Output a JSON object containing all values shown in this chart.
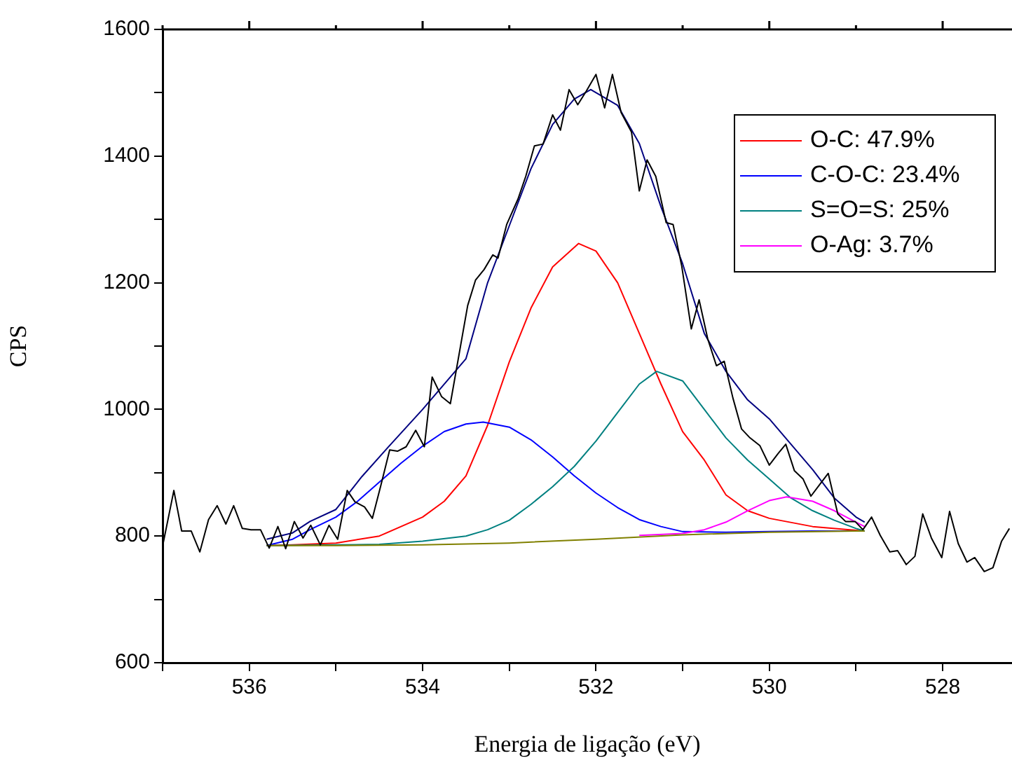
{
  "chart_data": {
    "type": "line",
    "xlabel": "Energia de ligação (eV)",
    "ylabel": "CPS",
    "xlim": [
      537,
      527.2
    ],
    "xticks": [
      {
        "value": 537,
        "label": null
      },
      536,
      {
        "value": 535,
        "label": null
      },
      534,
      {
        "value": 533,
        "label": null
      },
      532,
      {
        "value": 531,
        "label": null
      },
      530,
      {
        "value": 529,
        "label": null
      },
      528
    ],
    "ylim": [
      600,
      1600
    ],
    "yticks": [
      600,
      {
        "value": 700,
        "label": null
      },
      800,
      {
        "value": 900,
        "label": null
      },
      1000,
      {
        "value": 1100,
        "label": null
      },
      1200,
      {
        "value": 1300,
        "label": null
      },
      1400,
      {
        "value": 1500,
        "label": null
      },
      1600
    ],
    "legend": "top right",
    "marker": "none",
    "line_style": "solid",
    "series": [
      {
        "name": "O-C: 47.9%",
        "color": "#ff0000",
        "x": [
          535.8,
          535.5,
          535,
          534.5,
          534,
          533.75,
          533.5,
          533.25,
          533,
          532.75,
          532.5,
          532.2,
          532,
          531.75,
          531.5,
          531.25,
          531,
          530.75,
          530.5,
          530.25,
          530,
          529.5,
          529,
          528.9
        ],
        "values": [
          785,
          786,
          789,
          800,
          830,
          855,
          895,
          975,
          1075,
          1160,
          1225,
          1262,
          1250,
          1200,
          1120,
          1040,
          965,
          920,
          865,
          840,
          828,
          815,
          809,
          808
        ]
      },
      {
        "name": "C-O-C: 23.4%",
        "color": "#0000ff",
        "x": [
          535.8,
          535.5,
          535.3,
          535,
          534.75,
          534.5,
          534.25,
          534,
          533.75,
          533.5,
          533.3,
          533,
          532.75,
          532.5,
          532.25,
          532,
          531.75,
          531.5,
          531.25,
          531,
          530.5,
          530,
          529.5,
          528.9
        ],
        "values": [
          785,
          795,
          810,
          830,
          855,
          885,
          915,
          942,
          965,
          977,
          980,
          972,
          952,
          925,
          895,
          868,
          845,
          826,
          815,
          807,
          806,
          807,
          808,
          808
        ]
      },
      {
        "name": "S=O=S: 25%",
        "color": "#008080",
        "x": [
          535.8,
          535,
          534.5,
          534,
          533.5,
          533.25,
          533,
          532.75,
          532.5,
          532.25,
          532,
          531.75,
          531.5,
          531.3,
          531,
          530.75,
          530.5,
          530.25,
          530,
          529.75,
          529.5,
          529.25,
          529,
          528.9
        ],
        "values": [
          785,
          786,
          787,
          792,
          800,
          810,
          825,
          850,
          878,
          910,
          950,
          995,
          1040,
          1060,
          1045,
          1000,
          955,
          920,
          890,
          860,
          840,
          825,
          812,
          808
        ]
      },
      {
        "name": "O-Ag: 3.7%",
        "color": "#ff00ff",
        "x": [
          531.5,
          531,
          530.75,
          530.5,
          530.25,
          530,
          529.8,
          529.5,
          529.25,
          529,
          528.9
        ],
        "values": [
          801,
          804,
          810,
          822,
          840,
          856,
          862,
          855,
          840,
          822,
          815
        ]
      },
      {
        "color": "#808000",
        "x": [
          535.8,
          535,
          534,
          533,
          532,
          531,
          530,
          529,
          528.9
        ],
        "values": [
          785,
          785,
          786,
          789,
          795,
          802,
          806,
          808,
          808
        ]
      },
      {
        "color": "#000080",
        "x": [
          535.8,
          535.5,
          535.3,
          535,
          534.7,
          534.4,
          534,
          533.5,
          533.25,
          533,
          532.75,
          532.5,
          532.25,
          532.06,
          531.75,
          531.5,
          531.25,
          531,
          530.75,
          530.5,
          530.25,
          530,
          529.75,
          529.5,
          529.25,
          529,
          528.9
        ],
        "values": [
          795,
          805,
          823,
          842,
          894,
          940,
          1000,
          1080,
          1200,
          1290,
          1380,
          1450,
          1490,
          1505,
          1480,
          1420,
          1320,
          1230,
          1120,
          1060,
          1015,
          985,
          945,
          905,
          860,
          830,
          822
        ]
      },
      {
        "color": "#000000",
        "x": [
          537,
          536.87,
          536.78,
          536.67,
          536.57,
          536.47,
          536.37,
          536.27,
          536.18,
          536.08,
          535.98,
          535.87,
          535.77,
          535.67,
          535.58,
          535.48,
          535.38,
          535.29,
          535.18,
          535.08,
          534.98,
          534.87,
          534.78,
          534.67,
          534.58,
          534.48,
          534.38,
          534.29,
          534.19,
          534.08,
          533.98,
          533.89,
          533.78,
          533.68,
          533.56,
          533.48,
          533.39,
          533.29,
          533.19,
          533.13,
          533.03,
          532.9,
          532.81,
          532.71,
          532.61,
          532.5,
          532.41,
          532.31,
          532.21,
          532.11,
          532,
          531.9,
          531.81,
          531.71,
          531.59,
          531.5,
          531.41,
          531.31,
          531.19,
          531.11,
          531.01,
          530.9,
          530.81,
          530.71,
          530.61,
          530.52,
          530.42,
          530.32,
          530.23,
          530.11,
          530,
          529.9,
          529.81,
          529.71,
          529.61,
          529.52,
          529.42,
          529.32,
          529.21,
          529.12,
          529.01,
          528.92,
          528.82,
          528.72,
          528.61,
          528.52,
          528.42,
          528.32,
          528.23,
          528.13,
          528.01,
          527.92,
          527.82,
          527.72,
          527.63,
          527.52,
          527.42,
          527.32,
          527.23
        ],
        "values": [
          784,
          872,
          808,
          808,
          775,
          826,
          848,
          819,
          848,
          812,
          810,
          810,
          781,
          815,
          780,
          823,
          797,
          817,
          786,
          817,
          795,
          872,
          854,
          846,
          828,
          881,
          936,
          934,
          941,
          967,
          941,
          1051,
          1020,
          1009,
          1102,
          1164,
          1204,
          1221,
          1244,
          1239,
          1292,
          1332,
          1368,
          1416,
          1419,
          1465,
          1441,
          1505,
          1481,
          1503,
          1529,
          1476,
          1529,
          1469,
          1438,
          1345,
          1394,
          1368,
          1295,
          1292,
          1226,
          1127,
          1173,
          1111,
          1069,
          1076,
          1018,
          969,
          956,
          943,
          912,
          930,
          945,
          903,
          890,
          863,
          881,
          899,
          835,
          823,
          823,
          810,
          830,
          801,
          775,
          777,
          755,
          768,
          835,
          797,
          766,
          839,
          788,
          759,
          766,
          744,
          750,
          792,
          812
        ]
      }
    ]
  }
}
